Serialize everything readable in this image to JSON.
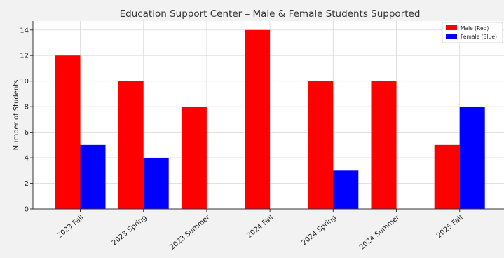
{
  "chart_data": {
    "type": "bar",
    "title": "Education Support Center – Male & Female Students Supported",
    "xlabel": "",
    "ylabel": "Number of Students",
    "categories": [
      "2023 Fall",
      "2023 Spring",
      "2023 Summer",
      "2024 Fall",
      "2024 Spring",
      "2024 Summer",
      "2025 Fall"
    ],
    "series": [
      {
        "name": "Male (Red)",
        "color": "#ff0000",
        "values": [
          12,
          10,
          8,
          14,
          10,
          10,
          5
        ]
      },
      {
        "name": "Female (Blue)",
        "color": "#0000ff",
        "values": [
          5,
          4,
          0,
          0,
          3,
          0,
          8
        ]
      }
    ],
    "ylim": [
      0,
      14.7
    ],
    "yticks": [
      0,
      2,
      4,
      6,
      8,
      10,
      12,
      14
    ],
    "grid": true,
    "legend_position": "top-right"
  }
}
